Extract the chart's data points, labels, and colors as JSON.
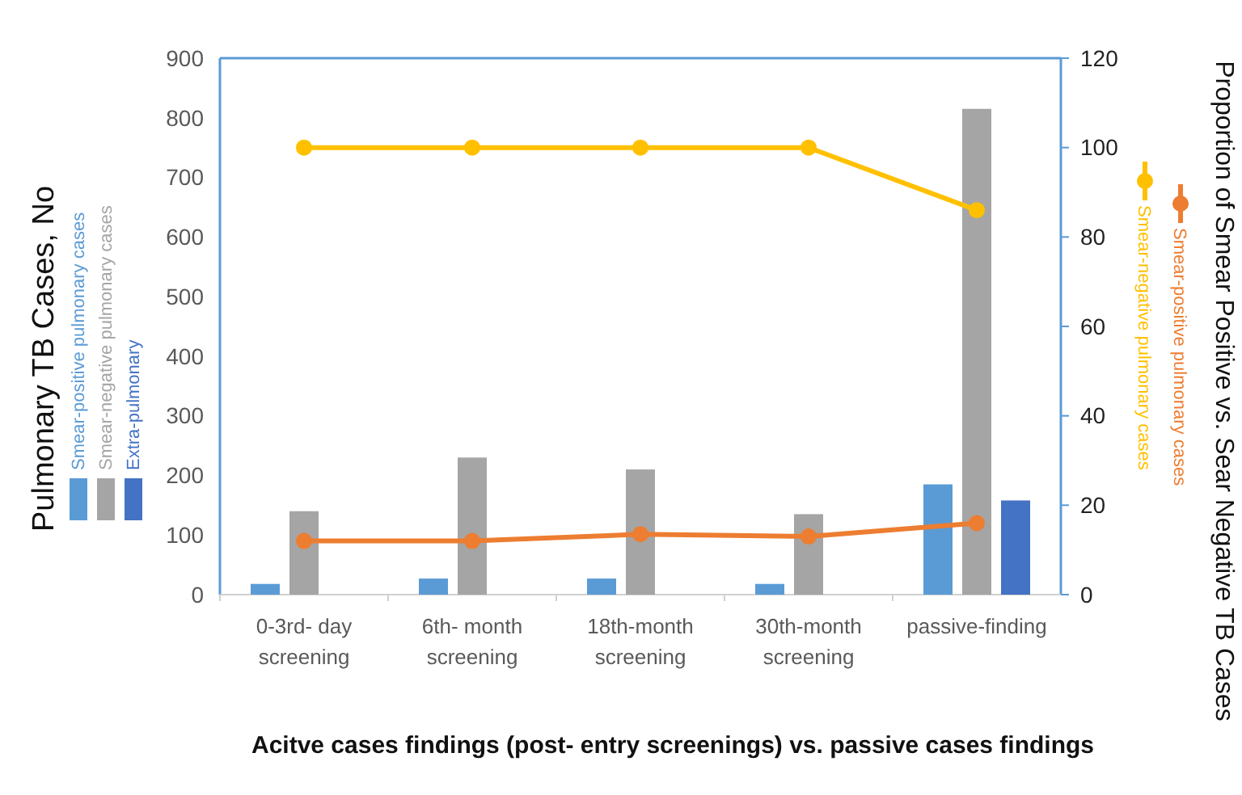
{
  "chart_data": {
    "type": "bar",
    "xlabel": "Acitve cases findings (post- entry screenings) vs. passive cases findings",
    "ylabel": "Pulmonary TB Cases, No",
    "y2label": "Proportion of Smear Positive vs. Sear Negative TB Cases",
    "categories": [
      "0-3rd- day screening",
      "6th- month screening",
      "18th-month screening",
      "30th-month screening",
      "passive-finding"
    ],
    "series": [
      {
        "name": "Smear-positive pulmonary cases",
        "color": "#5b9bd5",
        "values": [
          18,
          27,
          27,
          18,
          185
        ]
      },
      {
        "name": "Smear-negative pulmonary cases",
        "color": "#a5a5a5",
        "values": [
          140,
          230,
          210,
          135,
          815
        ]
      },
      {
        "name": "Extra-pulmonary",
        "color": "#4472c4",
        "values": [
          null,
          null,
          null,
          null,
          158
        ]
      },
      {
        "name": "Smear-positive pulmonary cases",
        "type": "line",
        "axis": "y2",
        "color": "#ed7d31",
        "values": [
          12,
          12,
          13.5,
          13,
          16
        ]
      },
      {
        "name": "Smear-negative pulmonary cases",
        "type": "line",
        "axis": "y2",
        "color": "#ffc000",
        "values": [
          100,
          100,
          100,
          100,
          86
        ]
      }
    ],
    "ylim": [
      0,
      900
    ],
    "yticks": [
      0,
      100,
      200,
      300,
      400,
      500,
      600,
      700,
      800,
      900
    ],
    "y2lim": [
      0,
      120
    ],
    "y2ticks": [
      0,
      20,
      40,
      60,
      80,
      100,
      120
    ],
    "grid": false,
    "legend": "right",
    "marker": "circle",
    "line_style": "solid"
  }
}
